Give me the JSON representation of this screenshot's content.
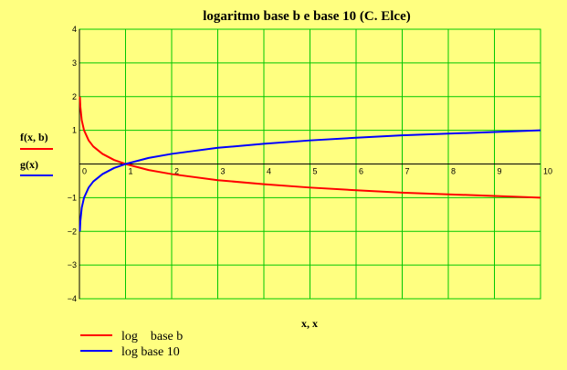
{
  "chart_data": {
    "type": "line",
    "title": "logaritmo base b  e base 10 (C. Elce)",
    "xlabel": "x, x",
    "ylabel_series": [
      "f(x, b)",
      "g(x)"
    ],
    "xlim": [
      0,
      10
    ],
    "ylim": [
      -4,
      4
    ],
    "x_ticks": [
      "0",
      "1",
      "2",
      "3",
      "4",
      "5",
      "6",
      "7",
      "8",
      "9",
      "10"
    ],
    "y_ticks": [
      "4",
      "3",
      "2",
      "1",
      "−1",
      "−2",
      "−3",
      "−4"
    ],
    "grid": true,
    "legend_position": "bottom-left",
    "series": [
      {
        "name": "log    base b",
        "color": "#ff0000",
        "x": [
          0.01,
          0.02,
          0.05,
          0.1,
          0.2,
          0.3,
          0.5,
          0.75,
          1,
          1.5,
          2,
          3,
          4,
          5,
          6,
          7,
          8,
          9,
          10
        ],
        "y": [
          2.0,
          1.7,
          1.3,
          1.0,
          0.7,
          0.52,
          0.3,
          0.12,
          0,
          -0.18,
          -0.3,
          -0.48,
          -0.6,
          -0.7,
          -0.78,
          -0.85,
          -0.9,
          -0.95,
          -1.0
        ]
      },
      {
        "name": "log base 10",
        "color": "#0000ff",
        "x": [
          0.01,
          0.02,
          0.05,
          0.1,
          0.2,
          0.3,
          0.5,
          0.75,
          1,
          1.5,
          2,
          3,
          4,
          5,
          6,
          7,
          8,
          9,
          10
        ],
        "y": [
          -2.0,
          -1.7,
          -1.3,
          -1.0,
          -0.7,
          -0.52,
          -0.3,
          -0.12,
          0,
          0.18,
          0.3,
          0.48,
          0.6,
          0.7,
          0.78,
          0.85,
          0.9,
          0.95,
          1.0
        ]
      }
    ]
  },
  "colors": {
    "background": "#ffff80",
    "grid": "#00c800",
    "axis": "#000000"
  }
}
